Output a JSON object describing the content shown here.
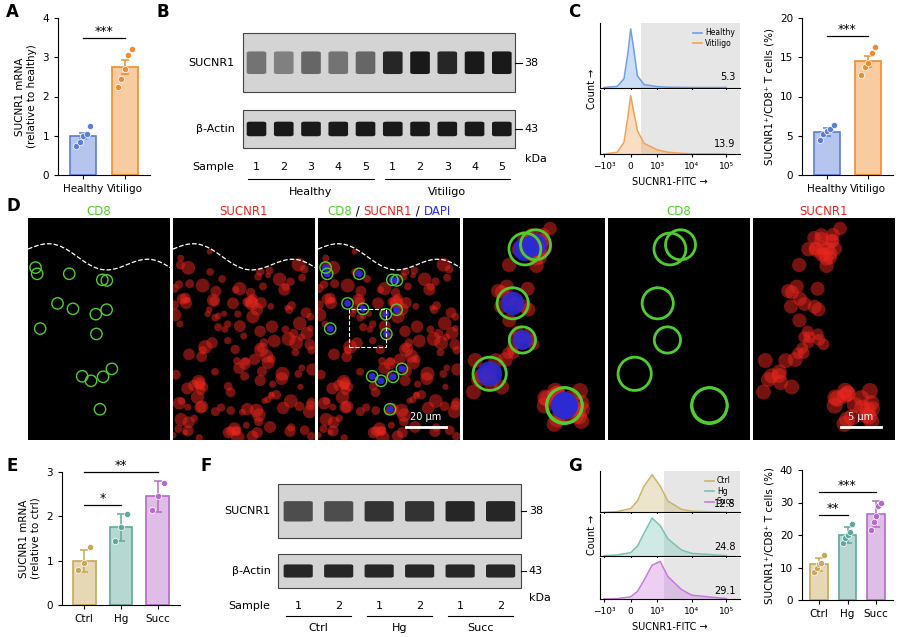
{
  "chart_data": [
    {
      "panel": "A",
      "type": "bar",
      "ylabel": "SUCNR1 mRNA\n(relative to healthy)",
      "categories": [
        "Healthy",
        "Vitiligo"
      ],
      "values": [
        1.0,
        2.75
      ],
      "errors": [
        0.08,
        0.18
      ],
      "points": [
        [
          0.75,
          0.85,
          1.0,
          1.05,
          1.25
        ],
        [
          2.25,
          2.45,
          2.7,
          3.05,
          3.2
        ]
      ],
      "colors": [
        "#5b7fd6",
        "#f08c2e"
      ],
      "ylim": [
        0,
        4
      ],
      "yticks": [
        0,
        1,
        2,
        3,
        4
      ],
      "significance": [
        {
          "groups": [
            0,
            1
          ],
          "label": "***"
        }
      ]
    },
    {
      "panel": "C",
      "type": "histogram_overlay",
      "xlabel": "SUCNR1-FITC →",
      "ylabel": "Count →",
      "log": "x",
      "legend": "upper right",
      "tick_labels": "x",
      "x": [
        -1000,
        -500,
        -250,
        -100,
        0,
        100,
        250,
        500,
        1000,
        2000,
        5000,
        10000,
        100000
      ],
      "gate": 400,
      "series": [
        {
          "name": "Healthy",
          "color": "#6f9fe6",
          "percent": 5.3,
          "values": [
            0,
            2,
            15,
            60,
            100,
            70,
            20,
            5,
            1.5,
            0.5,
            0.2,
            0,
            0
          ]
        },
        {
          "name": "Vitiligo",
          "color": "#f3a253",
          "percent": 13.9,
          "values": [
            0,
            3,
            20,
            65,
            100,
            75,
            40,
            18,
            7,
            3,
            1.2,
            0.4,
            0
          ]
        }
      ],
      "xlim": [
        -1300,
        250000
      ],
      "ylim": [
        0,
        110
      ],
      "xticks": [
        {
          "value": -1000,
          "label": "−10³"
        },
        0,
        {
          "value": 1000,
          "label": "10³"
        },
        {
          "value": 10000,
          "label": "10⁴"
        },
        {
          "value": 100000,
          "label": "10⁵"
        }
      ]
    },
    {
      "type": "bar",
      "ylabel": "SUCNR1⁺/CD8⁺ T cells (%)",
      "categories": [
        "Healthy",
        "Vitiligo"
      ],
      "values": [
        5.5,
        14.5
      ],
      "errors": [
        0.5,
        0.7
      ],
      "points": [
        [
          4.4,
          5.2,
          5.6,
          5.9,
          6.4
        ],
        [
          12.8,
          13.8,
          14.3,
          15.5,
          16.3
        ]
      ],
      "colors": [
        "#5b7fd6",
        "#f08c2e"
      ],
      "ylim": [
        0,
        20
      ],
      "yticks": [
        0,
        5,
        10,
        15,
        20
      ],
      "significance": [
        {
          "groups": [
            0,
            1
          ],
          "label": "***"
        }
      ]
    },
    {
      "panel": "E",
      "type": "bar",
      "ylabel": "SUCNR1 mRNA\n(relative to ctrl)",
      "categories": [
        "Ctrl",
        "Hg",
        "Succ"
      ],
      "values": [
        1.0,
        1.75,
        2.45
      ],
      "errors": [
        0.25,
        0.3,
        0.35
      ],
      "points": [
        [
          0.8,
          0.95,
          1.3
        ],
        [
          1.45,
          1.75,
          2.05
        ],
        [
          2.15,
          2.45,
          2.75
        ]
      ],
      "colors": [
        "#c8a75a",
        "#5fa89c",
        "#b56cc8"
      ],
      "ylim": [
        0,
        3
      ],
      "yticks": [
        0,
        1,
        2,
        3
      ],
      "significance": [
        {
          "groups": [
            0,
            1
          ],
          "label": "*"
        },
        {
          "groups": [
            0,
            2
          ],
          "label": "**"
        }
      ]
    },
    {
      "panel": "G",
      "type": "histogram_overlay",
      "xlabel": "SUCNR1-FITC →",
      "ylabel": "Count →",
      "log": "x",
      "legend": "upper right",
      "tick_labels": "x",
      "x": [
        -1000,
        -500,
        0,
        250,
        500,
        800,
        1200,
        2000,
        5000,
        10000,
        100000
      ],
      "gate": 1500,
      "series": [
        {
          "name": "Ctrl",
          "color": "#c9b46a",
          "percent": 12.8,
          "values": [
            0,
            2,
            10,
            30,
            70,
            100,
            70,
            30,
            8,
            3,
            0
          ]
        },
        {
          "name": "Hg",
          "color": "#78c2b3",
          "percent": 24.8,
          "values": [
            0,
            2,
            8,
            25,
            60,
            100,
            80,
            45,
            15,
            6,
            0
          ]
        },
        {
          "name": "Succ",
          "color": "#c978dc",
          "percent": 29.1,
          "values": [
            0,
            1,
            6,
            20,
            50,
            90,
            100,
            60,
            25,
            10,
            1
          ]
        }
      ],
      "xlim": [
        -1300,
        250000
      ],
      "ylim": [
        0,
        110
      ],
      "xticks": [
        {
          "value": -1000,
          "label": "−10³"
        },
        0,
        {
          "value": 1000,
          "label": "10³"
        },
        {
          "value": 10000,
          "label": "10⁴"
        },
        {
          "value": 100000,
          "label": "10⁵"
        }
      ]
    },
    {
      "type": "bar",
      "ylabel": "SUCNR1⁺/CD8⁺ T cells (%)",
      "categories": [
        "Ctrl",
        "Hg",
        "Succ"
      ],
      "values": [
        11,
        20,
        26.5
      ],
      "errors": [
        2,
        2.5,
        4
      ],
      "points": [
        [
          8.5,
          10,
          11,
          11.5,
          14
        ],
        [
          17.5,
          19,
          20,
          21,
          23.5
        ],
        [
          21.5,
          24,
          26,
          29,
          30
        ]
      ],
      "colors": [
        "#c8a75a",
        "#5fa89c",
        "#b56cc8"
      ],
      "ylim": [
        0,
        40
      ],
      "yticks": [
        0,
        10,
        20,
        30,
        40
      ],
      "significance": [
        {
          "groups": [
            0,
            1
          ],
          "label": "**"
        },
        {
          "groups": [
            0,
            2
          ],
          "label": "***"
        }
      ]
    }
  ],
  "blots": [
    {
      "panel": "B",
      "unit": "kDa",
      "sample_label": "Sample",
      "rows": [
        {
          "label": "SUCNR1",
          "kda": 38,
          "band_intensity": [
            0.55,
            0.5,
            0.6,
            0.55,
            0.6,
            0.85,
            0.9,
            0.85,
            0.9,
            0.9
          ]
        },
        {
          "label": "β-Actin",
          "kda": 43,
          "band_intensity": [
            0.9,
            0.9,
            0.9,
            0.9,
            0.9,
            0.9,
            0.9,
            0.9,
            0.9,
            0.9
          ]
        }
      ],
      "samples": [
        "1",
        "2",
        "3",
        "4",
        "5",
        "1",
        "2",
        "3",
        "4",
        "5"
      ],
      "groups": [
        {
          "name": "Healthy",
          "count": 5
        },
        {
          "name": "Vitiligo",
          "count": 5
        }
      ]
    },
    {
      "panel": "F",
      "unit": "kDa",
      "sample_label": "Sample",
      "rows": [
        {
          "label": "SUCNR1",
          "kda": 38,
          "band_intensity": [
            0.7,
            0.7,
            0.8,
            0.8,
            0.85,
            0.85
          ]
        },
        {
          "label": "β-Actin",
          "kda": 43,
          "band_intensity": [
            0.85,
            0.85,
            0.85,
            0.85,
            0.85,
            0.85
          ]
        }
      ],
      "samples": [
        "1",
        "2",
        "1",
        "2",
        "1",
        "2"
      ],
      "groups": [
        {
          "name": "Ctrl",
          "count": 2
        },
        {
          "name": "Hg",
          "count": 2
        },
        {
          "name": "Succ",
          "count": 2
        }
      ]
    }
  ],
  "images": {
    "panel": "D",
    "separator": " / ",
    "channels": [
      {
        "name": "CD8",
        "color": "#4fcc2e"
      },
      {
        "name": "SUCNR1",
        "color": "#e8261e"
      },
      {
        "name": "DAPI",
        "color": "#2b2bd6"
      }
    ],
    "frames": [
      {
        "channels": [
          "CD8"
        ],
        "title": [
          "CD8"
        ]
      },
      {
        "channels": [
          "SUCNR1"
        ],
        "title": [
          "SUCNR1"
        ]
      },
      {
        "channels": [
          "CD8",
          "SUCNR1",
          "DAPI"
        ],
        "title": [
          "CD8",
          "SUCNR1",
          "DAPI"
        ],
        "scale_bar": "20 µm"
      },
      {
        "channels": [
          "CD8",
          "SUCNR1",
          "DAPI"
        ],
        "zoom": true
      },
      {
        "channels": [
          "CD8"
        ],
        "title": [
          "CD8"
        ],
        "zoom": true
      },
      {
        "channels": [
          "SUCNR1"
        ],
        "title": [
          "SUCNR1"
        ],
        "zoom": true,
        "scale_bar": "5 µm"
      }
    ]
  }
}
